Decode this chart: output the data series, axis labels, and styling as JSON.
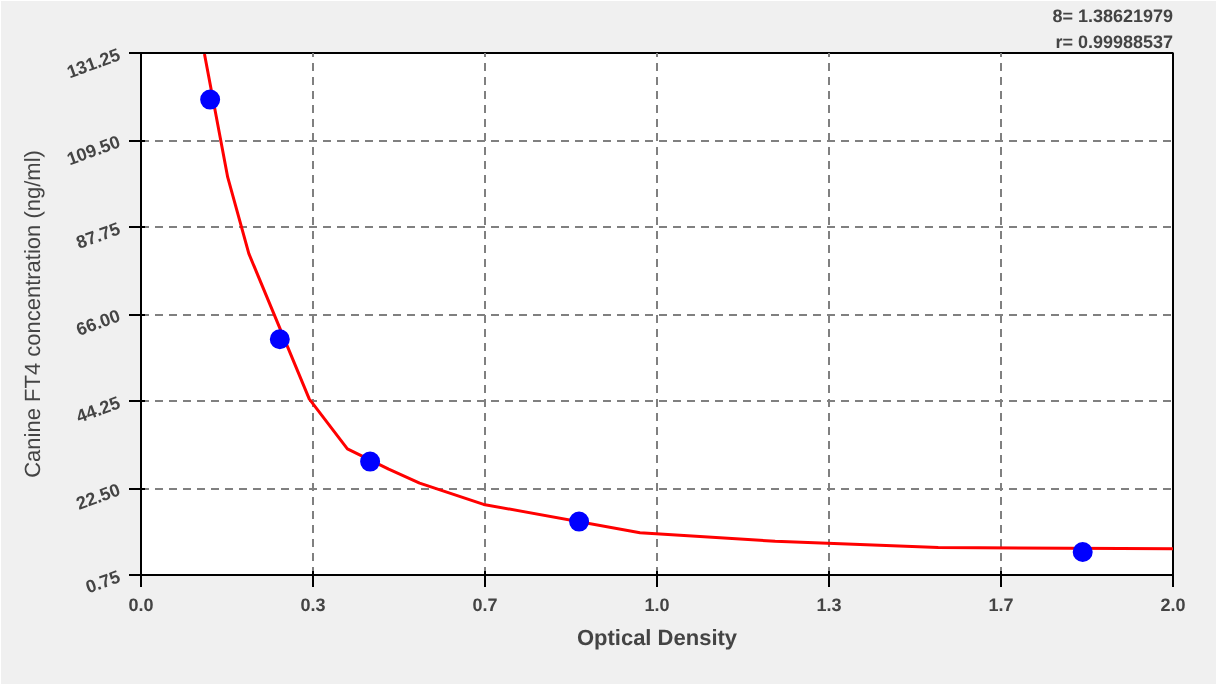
{
  "chart_data": {
    "type": "scatter",
    "xlabel": "Optical Density",
    "ylabel": "Canine FT4 concentration (ng/ml)",
    "annotations": [
      "8= 1.38621979",
      "r= 0.99988537"
    ],
    "series": [
      {
        "color": "#0000ff",
        "marker": "circle",
        "x": [
          0.134,
          0.269,
          0.444,
          0.849,
          1.825
        ],
        "values": [
          119.6,
          59.7,
          29.1,
          14.1,
          6.5
        ]
      },
      {
        "type": "line",
        "color": "#ff0000",
        "marker": "none",
        "x": [
          0.123,
          0.168,
          0.209,
          0.326,
          0.4,
          0.48,
          0.54,
          0.664,
          0.967,
          1.229,
          1.545,
          2.0
        ],
        "values": [
          131,
          100.2,
          81.1,
          44.8,
          32.3,
          27.2,
          23.7,
          18.4,
          11.3,
          9.2,
          7.6,
          7.3
        ]
      }
    ],
    "xlim": [
      0,
      2
    ],
    "ylim": [
      0.75,
      131.25
    ],
    "xticks": [
      {
        "value": 0,
        "label": "0.0"
      },
      {
        "value": 0.3333,
        "label": "0.3"
      },
      {
        "value": 0.6667,
        "label": "0.7"
      },
      {
        "value": 1,
        "label": "1.0"
      },
      {
        "value": 1.3333,
        "label": "1.3"
      },
      {
        "value": 1.6667,
        "label": "1.7"
      },
      {
        "value": 2,
        "label": "2.0"
      }
    ],
    "yticks": [
      0.75,
      {
        "value": 22.5,
        "label": "22.50"
      },
      {
        "value": 44.25,
        "label": "44.25"
      },
      {
        "value": 66,
        "label": "66.00"
      },
      {
        "value": 87.75,
        "label": "87.75"
      },
      {
        "value": 109.5,
        "label": "109.50"
      },
      131.25
    ],
    "grid": true
  }
}
